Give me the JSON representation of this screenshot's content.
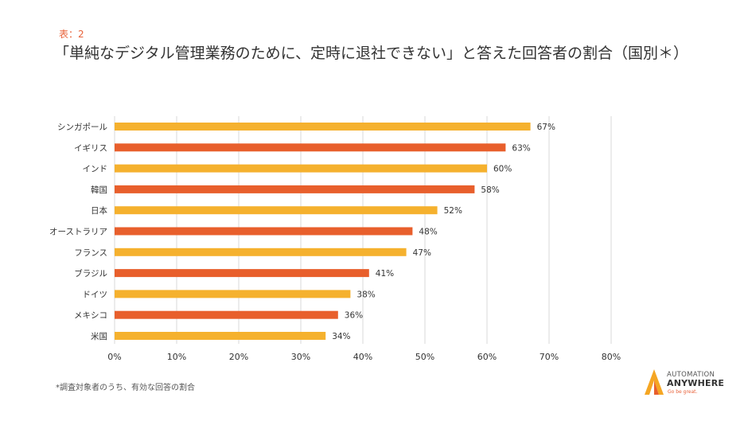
{
  "header": {
    "label": "表：2",
    "title": "「単純なデジタル管理業務のために、定時に退社できない」と答えた回答者の割合（国別＊）"
  },
  "footnote": "*調査対象者のうち、有効な回答の割合",
  "logo": {
    "line1": "AUTOMATION",
    "line2": "ANYWHERE",
    "line3": "Go be great."
  },
  "colors": {
    "light": "#f5b12e",
    "dark": "#e85f2c",
    "grid": "#d9d9d9"
  },
  "chart_data": {
    "type": "bar",
    "orientation": "horizontal",
    "title": "「単純なデジタル管理業務のために、定時に退社できない」と答えた回答者の割合（国別＊）",
    "categories": [
      "シンガポール",
      "イギリス",
      "インド",
      "韓国",
      "日本",
      "オーストラリア",
      "フランス",
      "ブラジル",
      "ドイツ",
      "メキシコ",
      "米国"
    ],
    "values": [
      67,
      63,
      60,
      58,
      52,
      48,
      47,
      41,
      38,
      36,
      34
    ],
    "data_labels": [
      "67%",
      "63%",
      "60%",
      "58%",
      "52%",
      "48%",
      "47%",
      "41%",
      "38%",
      "36%",
      "34%"
    ],
    "bar_colors": [
      "light",
      "dark",
      "light",
      "dark",
      "light",
      "dark",
      "light",
      "dark",
      "light",
      "dark",
      "light"
    ],
    "xlim": [
      0,
      80
    ],
    "xticks": [
      0,
      10,
      20,
      30,
      40,
      50,
      60,
      70,
      80
    ],
    "xtick_labels": [
      "0%",
      "10%",
      "20%",
      "30%",
      "40%",
      "50%",
      "60%",
      "70%",
      "80%"
    ],
    "grid": true,
    "xlabel": "",
    "ylabel": ""
  }
}
